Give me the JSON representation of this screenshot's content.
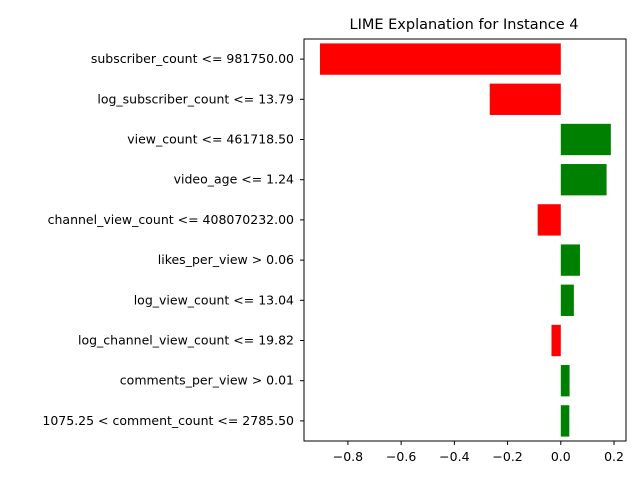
{
  "chart_data": {
    "type": "bar",
    "orientation": "horizontal",
    "title": "LIME Explanation for Instance 4",
    "xlabel": "",
    "ylabel": "",
    "xlim": [
      -0.965,
      0.245
    ],
    "xticks": [
      -0.8,
      -0.6,
      -0.4,
      -0.2,
      0.0,
      0.2
    ],
    "xtick_labels": [
      "−0.8",
      "−0.6",
      "−0.4",
      "−0.2",
      "0.0",
      "0.2"
    ],
    "grid": false,
    "legend": "none",
    "positive_color": "#008000",
    "negative_color": "#ff0000",
    "categories": [
      "subscriber_count <= 981750.00",
      "log_subscriber_count <= 13.79",
      "view_count <= 461718.50",
      "video_age <= 1.24",
      "channel_view_count <= 408070232.00",
      "likes_per_view > 0.06",
      "log_view_count <= 13.04",
      "log_channel_view_count <= 19.82",
      "comments_per_view > 0.01",
      "1075.25 < comment_count <= 2785.50"
    ],
    "values": [
      -0.905,
      -0.267,
      0.188,
      0.172,
      -0.087,
      0.072,
      0.049,
      -0.035,
      0.033,
      0.032
    ]
  }
}
